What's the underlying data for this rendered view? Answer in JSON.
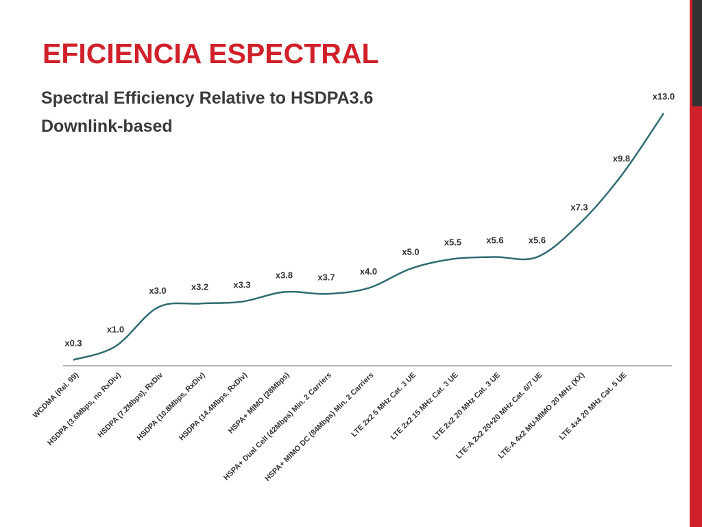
{
  "header": {
    "title": "EFICIENCIA ESPECTRAL"
  },
  "chart_data": {
    "type": "line",
    "title": "Spectral Efficiency Relative to HSDPA3.6",
    "subtitle": "Downlink-based",
    "categories": [
      "WCDMA (Rel. 99)",
      "HSDPA (3.6Mbps, no RxDiv)",
      "HSDPA (7.2Mbps), RxDiv",
      "HSDPA (10.8Mbps, RxDiv)",
      "HSDPA (14.4Mbps, RxDiv)",
      "HSPA+ MIMO (28Mbps)",
      "HSPA+ Dual Cell (42Mbps) Min. 2 Carriers",
      "HSPA+ MIMO DC (84Mbps) Min. 2 Carriers",
      "LTE 2x2 5 MHz Cat. 3 UE",
      "LTE 2x2 15 MHz Cat. 3 UE",
      "LTE 2x2 20 MHz Cat. 3 UE",
      "LTE-A 2x2 20+20 MHz Cat. 6/7 UE",
      "LTE-A 4x2 MU-MIMO 20 MHz (XX)",
      "LTE 4x4 20 MHz Cat. 5 UE",
      null
    ],
    "values": [
      0.3,
      1.0,
      3.0,
      3.2,
      3.3,
      3.8,
      3.7,
      4.0,
      5.0,
      5.5,
      5.6,
      5.6,
      7.3,
      9.8,
      13.0
    ],
    "value_labels": [
      "x0.3",
      "x1.0",
      "x3.0",
      "x3.2",
      "x3.3",
      "x3.8",
      "x3.7",
      "x4.0",
      "x5.0",
      "x5.5",
      "x5.6",
      "x5.6",
      "x7.3",
      "x9.8",
      "x13.0"
    ],
    "color": "#2f6b73",
    "ylim": [
      0,
      13.5
    ]
  }
}
